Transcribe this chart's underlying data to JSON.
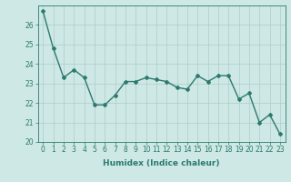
{
  "x": [
    0,
    1,
    2,
    3,
    4,
    5,
    6,
    7,
    8,
    9,
    10,
    11,
    12,
    13,
    14,
    15,
    16,
    17,
    18,
    19,
    20,
    21,
    22,
    23
  ],
  "y": [
    26.7,
    24.8,
    23.3,
    23.7,
    23.3,
    21.9,
    21.9,
    22.4,
    23.1,
    23.1,
    23.3,
    23.2,
    23.1,
    22.8,
    22.7,
    23.4,
    23.1,
    23.4,
    23.4,
    22.2,
    22.5,
    21.0,
    21.4,
    20.4
  ],
  "line_color": "#2d7a6e",
  "marker": "D",
  "marker_size": 2,
  "bg_color": "#cde8e5",
  "grid_color": "#b0ccca",
  "axis_color": "#2d7a6e",
  "xlabel": "Humidex (Indice chaleur)",
  "ylim": [
    20,
    27
  ],
  "xlim": [
    -0.5,
    23.5
  ],
  "yticks": [
    20,
    21,
    22,
    23,
    24,
    25,
    26
  ],
  "xticks": [
    0,
    1,
    2,
    3,
    4,
    5,
    6,
    7,
    8,
    9,
    10,
    11,
    12,
    13,
    14,
    15,
    16,
    17,
    18,
    19,
    20,
    21,
    22,
    23
  ],
  "xlabel_fontsize": 6.5,
  "tick_fontsize": 5.5,
  "line_width": 1.0
}
